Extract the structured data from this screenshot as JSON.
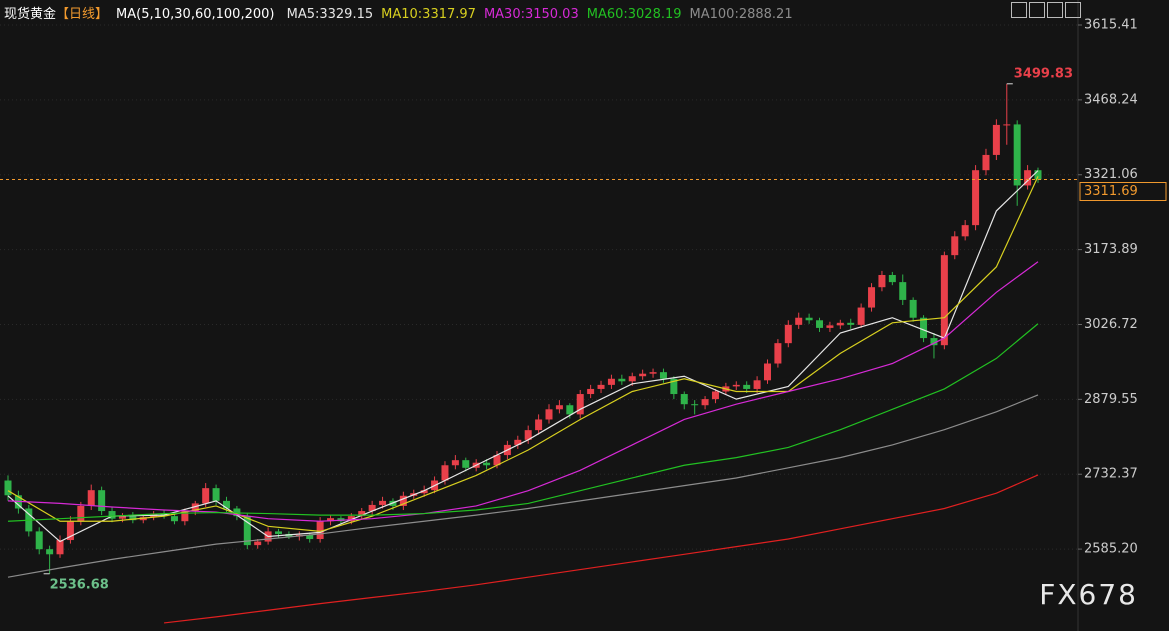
{
  "chart_data": {
    "type": "candlestick",
    "title": "现货黄金",
    "period": "【日线】",
    "ma_label": "MA(5,10,30,60,100,200)",
    "up_color": "#e8404a",
    "down_color": "#2fb34a",
    "ylim": [
      2424.2,
      3664.55
    ],
    "yticks": [
      3615.41,
      3468.24,
      3321.06,
      3173.89,
      3026.72,
      2879.55,
      2732.37,
      {
        "value": 2585.2,
        "label": "2585.20"
      }
    ],
    "grid": true,
    "open": [
      2720,
      2691,
      2665,
      2620,
      2585,
      2575,
      2603,
      2640,
      2670,
      2701,
      2660,
      2645,
      2650,
      2642,
      2648,
      2655,
      2650,
      2640,
      2660,
      2675,
      2705,
      2680,
      2665,
      2650,
      2593,
      2600,
      2620,
      2615,
      2610,
      2613,
      2605,
      2640,
      2646,
      2640,
      2650,
      2660,
      2672,
      2680,
      2670,
      2690,
      2695,
      2701,
      2720,
      2750,
      2760,
      2745,
      2755,
      2750,
      2770,
      2790,
      2800,
      2819,
      2840,
      2860,
      2868,
      2850,
      2890,
      2900,
      2908,
      2920,
      2915,
      2925,
      2930,
      2933,
      2920,
      2890,
      2870,
      2868,
      2880,
      2895,
      2905,
      2908,
      2900,
      2917,
      2950,
      2990,
      3026,
      3040,
      3035,
      3020,
      3025,
      3030,
      3026,
      3060,
      3100,
      3124,
      3110,
      3075,
      3040,
      3000,
      2986,
      3163,
      3200,
      3222,
      3330,
      3360,
      3419,
      3420,
      3300,
      3330
    ],
    "high": [
      2730,
      2700,
      2672,
      2628,
      2592,
      2612,
      2650,
      2678,
      2712,
      2708,
      2668,
      2656,
      2658,
      2652,
      2660,
      2662,
      2656,
      2665,
      2680,
      2715,
      2712,
      2688,
      2670,
      2655,
      2605,
      2628,
      2625,
      2620,
      2620,
      2618,
      2648,
      2652,
      2650,
      2656,
      2666,
      2680,
      2688,
      2685,
      2698,
      2702,
      2710,
      2728,
      2758,
      2770,
      2765,
      2762,
      2762,
      2778,
      2798,
      2808,
      2828,
      2850,
      2870,
      2878,
      2872,
      2898,
      2908,
      2916,
      2928,
      2928,
      2932,
      2938,
      2940,
      2940,
      2925,
      2895,
      2878,
      2886,
      2900,
      2912,
      2915,
      2915,
      2925,
      2958,
      2998,
      3035,
      3050,
      3048,
      3040,
      3032,
      3036,
      3038,
      3068,
      3108,
      3132,
      3130,
      3125,
      3080,
      3045,
      3010,
      3170,
      3210,
      3232,
      3340,
      3372,
      3430,
      3499.83,
      3428,
      3340,
      3335
    ],
    "low": [
      2680,
      2655,
      2610,
      2575,
      2536.68,
      2568,
      2596,
      2632,
      2662,
      2652,
      2638,
      2638,
      2636,
      2636,
      2642,
      2645,
      2634,
      2632,
      2652,
      2668,
      2672,
      2658,
      2642,
      2585,
      2586,
      2594,
      2608,
      2605,
      2602,
      2598,
      2598,
      2632,
      2634,
      2634,
      2645,
      2652,
      2665,
      2662,
      2662,
      2684,
      2688,
      2695,
      2712,
      2742,
      2738,
      2738,
      2742,
      2744,
      2762,
      2782,
      2792,
      2810,
      2832,
      2852,
      2842,
      2842,
      2882,
      2892,
      2900,
      2908,
      2906,
      2918,
      2922,
      2912,
      2880,
      2860,
      2850,
      2860,
      2872,
      2888,
      2898,
      2892,
      2892,
      2910,
      2942,
      2982,
      3018,
      3028,
      3012,
      3012,
      3018,
      3018,
      3020,
      3052,
      3092,
      3104,
      3065,
      3032,
      2992,
      2960,
      2978,
      3155,
      3192,
      3212,
      3320,
      3350,
      3380,
      3260,
      3292,
      3305
    ],
    "close": [
      2691,
      2665,
      2620,
      2585,
      2575,
      2603,
      2640,
      2670,
      2701,
      2660,
      2645,
      2650,
      2642,
      2648,
      2655,
      2650,
      2640,
      2660,
      2675,
      2705,
      2680,
      2665,
      2650,
      2593,
      2600,
      2620,
      2615,
      2610,
      2613,
      2605,
      2640,
      2646,
      2640,
      2650,
      2660,
      2672,
      2680,
      2670,
      2690,
      2695,
      2701,
      2720,
      2750,
      2760,
      2745,
      2755,
      2750,
      2770,
      2790,
      2800,
      2819,
      2840,
      2860,
      2868,
      2850,
      2890,
      2900,
      2908,
      2920,
      2915,
      2925,
      2930,
      2933,
      2920,
      2890,
      2870,
      2868,
      2880,
      2895,
      2905,
      2908,
      2900,
      2917,
      2950,
      2990,
      3026,
      3040,
      3035,
      3020,
      3025,
      3030,
      3026,
      3060,
      3100,
      3124,
      3110,
      3075,
      3040,
      3000,
      2986,
      3163,
      3200,
      3222,
      3330,
      3360,
      3419,
      3420,
      3300,
      3330,
      3311.69
    ],
    "moving_averages": {
      "x": [
        0,
        5,
        10,
        15,
        20,
        25,
        30,
        35,
        40,
        45,
        50,
        55,
        60,
        65,
        70,
        75,
        80,
        85,
        90,
        95,
        99
      ],
      "series": [
        {
          "name": "MA5:3329.15",
          "color": "#e6e6e6",
          "values": [
            2690,
            2600,
            2650,
            2652,
            2680,
            2610,
            2618,
            2660,
            2700,
            2750,
            2800,
            2860,
            2910,
            2925,
            2880,
            2905,
            3010,
            3040,
            3000,
            3250,
            3329.15
          ]
        },
        {
          "name": "MA10:3317.97",
          "color": "#d8d020",
          "values": [
            2700,
            2640,
            2640,
            2650,
            2670,
            2630,
            2620,
            2650,
            2690,
            2730,
            2780,
            2840,
            2895,
            2920,
            2895,
            2895,
            2970,
            3030,
            3040,
            3140,
            3317.97
          ]
        },
        {
          "name": "MA30:3150.03",
          "color": "#d62ad6",
          "values": [
            2680,
            2675,
            2668,
            2662,
            2658,
            2645,
            2640,
            2645,
            2655,
            2670,
            2700,
            2740,
            2790,
            2840,
            2870,
            2895,
            2920,
            2950,
            3000,
            3090,
            3150.03
          ]
        },
        {
          "name": "MA60:3028.19",
          "color": "#22c022",
          "values": [
            2640,
            2645,
            2650,
            2655,
            2657,
            2655,
            2652,
            2652,
            2655,
            2662,
            2675,
            2700,
            2725,
            2750,
            2765,
            2785,
            2820,
            2860,
            2900,
            2960,
            3028.19
          ]
        },
        {
          "name": "MA100:2888.21",
          "color": "#8c8c8c",
          "values": [
            2530,
            2548,
            2565,
            2580,
            2595,
            2605,
            2615,
            2628,
            2640,
            2652,
            2665,
            2680,
            2695,
            2710,
            2725,
            2745,
            2765,
            2790,
            2820,
            2855,
            2888.21
          ]
        },
        {
          "color": "#e02020",
          "values": [
            null,
            null,
            null,
            2440,
            2452,
            2465,
            2478,
            2490,
            2502,
            2515,
            2530,
            2545,
            2560,
            2575,
            2590,
            2605,
            2625,
            2645,
            2665,
            2695,
            2731
          ]
        }
      ]
    },
    "last_price": 3311.69,
    "annotations": {
      "high": 3499.83,
      "low": 2536.68
    },
    "watermark": "FX678"
  }
}
